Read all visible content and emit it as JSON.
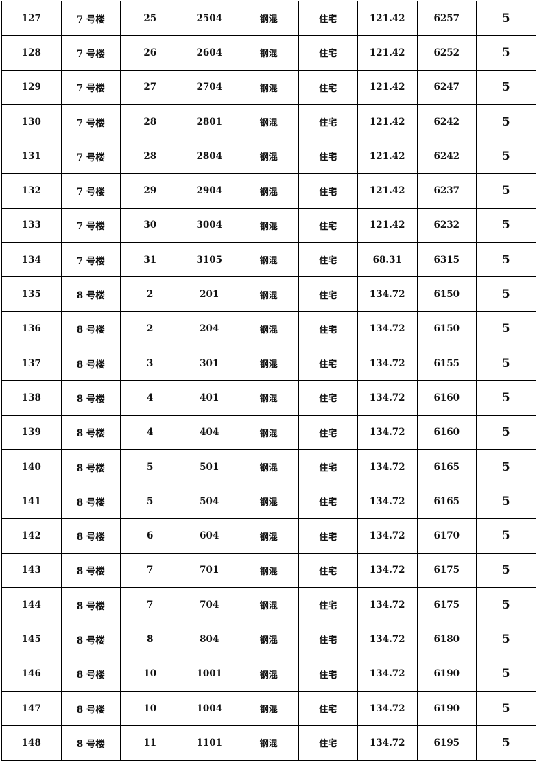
{
  "table": {
    "rows": [
      [
        "127",
        "7 号楼",
        "25",
        "2504",
        "钢混",
        "住宅",
        "121.42",
        "6257",
        "5"
      ],
      [
        "128",
        "7 号楼",
        "26",
        "2604",
        "钢混",
        "住宅",
        "121.42",
        "6252",
        "5"
      ],
      [
        "129",
        "7 号楼",
        "27",
        "2704",
        "钢混",
        "住宅",
        "121.42",
        "6247",
        "5"
      ],
      [
        "130",
        "7 号楼",
        "28",
        "2801",
        "钢混",
        "住宅",
        "121.42",
        "6242",
        "5"
      ],
      [
        "131",
        "7 号楼",
        "28",
        "2804",
        "钢混",
        "住宅",
        "121.42",
        "6242",
        "5"
      ],
      [
        "132",
        "7 号楼",
        "29",
        "2904",
        "钢混",
        "住宅",
        "121.42",
        "6237",
        "5"
      ],
      [
        "133",
        "7 号楼",
        "30",
        "3004",
        "钢混",
        "住宅",
        "121.42",
        "6232",
        "5"
      ],
      [
        "134",
        "7 号楼",
        "31",
        "3105",
        "钢混",
        "住宅",
        "68.31",
        "6315",
        "5"
      ],
      [
        "135",
        "8 号楼",
        "2",
        "201",
        "钢混",
        "住宅",
        "134.72",
        "6150",
        "5"
      ],
      [
        "136",
        "8 号楼",
        "2",
        "204",
        "钢混",
        "住宅",
        "134.72",
        "6150",
        "5"
      ],
      [
        "137",
        "8 号楼",
        "3",
        "301",
        "钢混",
        "住宅",
        "134.72",
        "6155",
        "5"
      ],
      [
        "138",
        "8 号楼",
        "4",
        "401",
        "钢混",
        "住宅",
        "134.72",
        "6160",
        "5"
      ],
      [
        "139",
        "8 号楼",
        "4",
        "404",
        "钢混",
        "住宅",
        "134.72",
        "6160",
        "5"
      ],
      [
        "140",
        "8 号楼",
        "5",
        "501",
        "钢混",
        "住宅",
        "134.72",
        "6165",
        "5"
      ],
      [
        "141",
        "8 号楼",
        "5",
        "504",
        "钢混",
        "住宅",
        "134.72",
        "6165",
        "5"
      ],
      [
        "142",
        "8 号楼",
        "6",
        "604",
        "钢混",
        "住宅",
        "134.72",
        "6170",
        "5"
      ],
      [
        "143",
        "8 号楼",
        "7",
        "701",
        "钢混",
        "住宅",
        "134.72",
        "6175",
        "5"
      ],
      [
        "144",
        "8 号楼",
        "7",
        "704",
        "钢混",
        "住宅",
        "134.72",
        "6175",
        "5"
      ],
      [
        "145",
        "8 号楼",
        "8",
        "804",
        "钢混",
        "住宅",
        "134.72",
        "6180",
        "5"
      ],
      [
        "146",
        "8 号楼",
        "10",
        "1001",
        "钢混",
        "住宅",
        "134.72",
        "6190",
        "5"
      ],
      [
        "147",
        "8 号楼",
        "10",
        "1004",
        "钢混",
        "住宅",
        "134.72",
        "6190",
        "5"
      ],
      [
        "148",
        "8 号楼",
        "11",
        "1101",
        "钢混",
        "住宅",
        "134.72",
        "6195",
        "5"
      ]
    ]
  }
}
